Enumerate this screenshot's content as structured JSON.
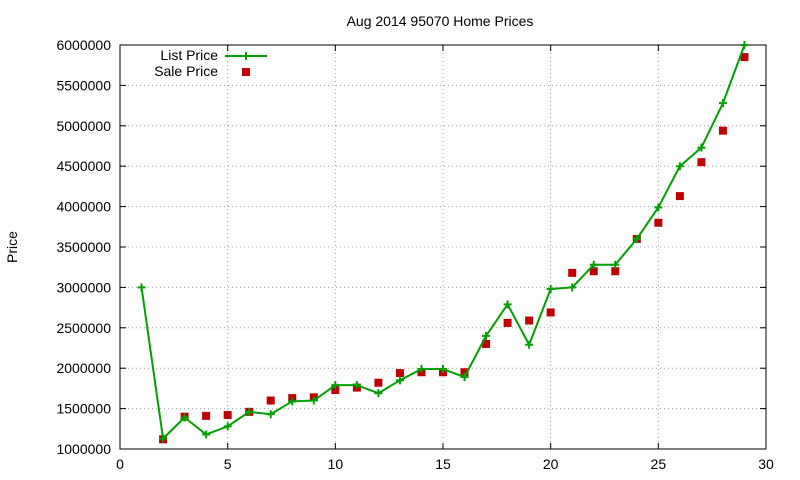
{
  "chart_data": {
    "type": "line",
    "title": "Aug 2014 95070 Home Prices",
    "xlabel": "",
    "ylabel": "Price",
    "xlim": [
      0,
      30
    ],
    "ylim": [
      1000000,
      6000000
    ],
    "xticks": [
      0,
      5,
      10,
      15,
      20,
      25,
      30
    ],
    "yticks": [
      1000000,
      1500000,
      2000000,
      2500000,
      3000000,
      3500000,
      4000000,
      4500000,
      5000000,
      5500000,
      6000000
    ],
    "grid": true,
    "legend_position": "top-left",
    "series": [
      {
        "name": "List Price",
        "style": "linespoints",
        "color": "#00a000",
        "marker": "plus",
        "x": [
          1,
          2,
          3,
          4,
          5,
          6,
          7,
          8,
          9,
          10,
          11,
          12,
          13,
          14,
          15,
          16,
          17,
          18,
          19,
          20,
          21,
          22,
          23,
          24,
          25,
          26,
          27,
          28,
          29
        ],
        "y": [
          3000000,
          1130000,
          1390000,
          1180000,
          1280000,
          1460000,
          1430000,
          1590000,
          1600000,
          1790000,
          1790000,
          1690000,
          1850000,
          1990000,
          1990000,
          1890000,
          2400000,
          2790000,
          2290000,
          2980000,
          3000000,
          3280000,
          3280000,
          3600000,
          3990000,
          4500000,
          4730000,
          5280000,
          6000000
        ]
      },
      {
        "name": "Sale Price",
        "style": "points",
        "color": "#c00000",
        "marker": "square",
        "x": [
          2,
          3,
          4,
          5,
          6,
          7,
          8,
          9,
          10,
          11,
          12,
          13,
          14,
          15,
          16,
          17,
          18,
          19,
          20,
          21,
          22,
          23,
          24,
          25,
          26,
          27,
          28,
          29
        ],
        "y": [
          1120000,
          1400000,
          1410000,
          1420000,
          1460000,
          1600000,
          1630000,
          1640000,
          1730000,
          1760000,
          1820000,
          1940000,
          1950000,
          1950000,
          1950000,
          2300000,
          2560000,
          2590000,
          2690000,
          3180000,
          3200000,
          3200000,
          3600000,
          3800000,
          4130000,
          4550000,
          4940000,
          5850000
        ]
      }
    ]
  }
}
